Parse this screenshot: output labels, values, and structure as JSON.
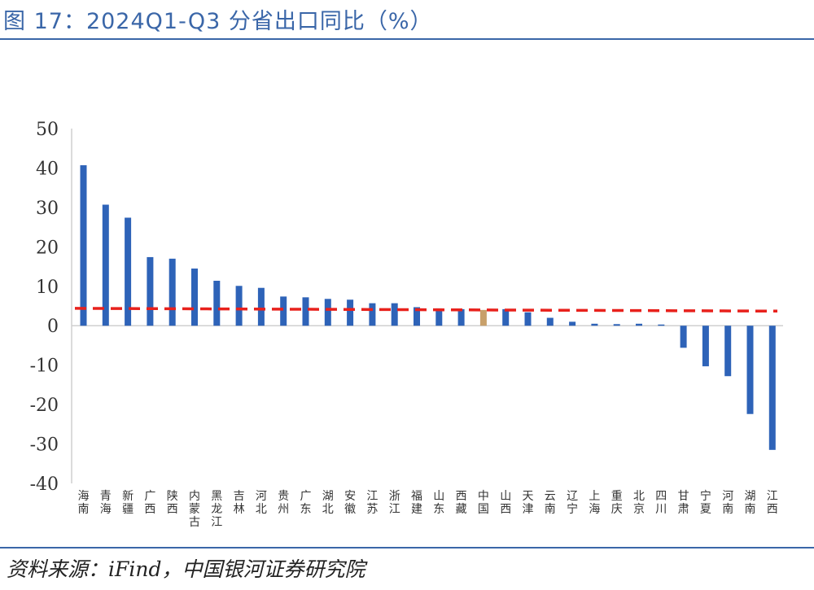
{
  "title": "图 17：2024Q1-Q3 分省出口同比（%）",
  "source": "资料来源：iFind，中国银河证券研究院",
  "colors": {
    "bar": "#2e63b8",
    "highlight": "#c8a06a",
    "reference": "#e8211c",
    "axis": "#cfcfcf",
    "accent": "#3a66a8"
  },
  "chart_data": {
    "type": "bar",
    "title": "2024Q1-Q3 分省出口同比（%）",
    "xlabel": "",
    "ylabel": "",
    "ylim": [
      -40,
      50
    ],
    "yticks": [
      50,
      40,
      30,
      20,
      10,
      0,
      -10,
      -20,
      -30,
      -40
    ],
    "grid": false,
    "legend": "none",
    "highlight_category": "中国",
    "categories": [
      "海南",
      "青海",
      "新疆",
      "广西",
      "陕西",
      "内蒙古",
      "黑龙江",
      "吉林",
      "河北",
      "贵州",
      "广东",
      "湖北",
      "安徽",
      "江苏",
      "浙江",
      "福建",
      "山东",
      "西藏",
      "中国",
      "山西",
      "天津",
      "云南",
      "辽宁",
      "上海",
      "重庆",
      "北京",
      "四川",
      "甘肃",
      "宁夏",
      "河南",
      "湖南",
      "江西"
    ],
    "values": [
      40.7,
      30.7,
      27.4,
      17.4,
      17.0,
      14.5,
      11.4,
      10.1,
      9.6,
      7.4,
      7.2,
      6.8,
      6.6,
      5.7,
      5.7,
      4.7,
      4.4,
      4.2,
      4.0,
      4.2,
      3.4,
      2.0,
      1.0,
      0.5,
      0.4,
      0.5,
      0.3,
      -5.6,
      -10.3,
      -12.8,
      -22.4,
      -31.5
    ],
    "reference_line": {
      "style": "dashed",
      "start": 4.4,
      "end": 3.7
    }
  }
}
